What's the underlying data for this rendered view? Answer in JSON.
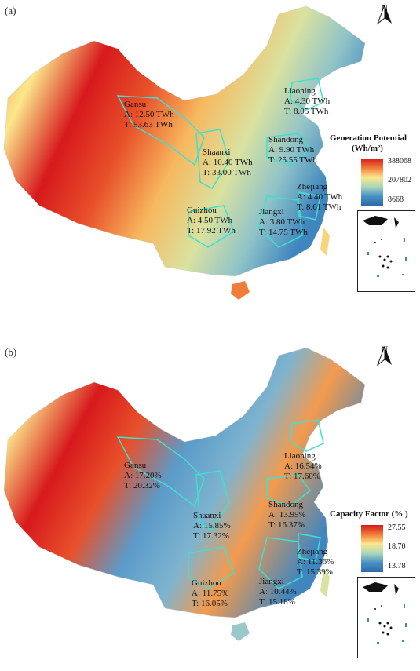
{
  "panel_a": {
    "tag": "(a)",
    "north": "N",
    "legend": {
      "title_line1": "Generation Potential",
      "title_line2": "(Wh/m²)",
      "max": "388068",
      "mid": "207802",
      "min": "8668"
    },
    "provinces": [
      {
        "name": "Gansu",
        "a": "A:  12.50 TWh",
        "t": "T:  53.63 TWh"
      },
      {
        "name": "Liaoning",
        "a": "A:  4.30 TWh",
        "t": "T:   8.05 TWh"
      },
      {
        "name": "Shaanxi",
        "a": "A:  10.40 TWh",
        "t": "T:  33.00 TWh"
      },
      {
        "name": "Shandong",
        "a": "A:  9.90 TWh",
        "t": "T:  25.55 TWh"
      },
      {
        "name": "Zhejiang",
        "a": "A:  4.40 TWh",
        "t": "T:   8.61 TWh"
      },
      {
        "name": "Guizhou",
        "a": "A:  4.50 TWh",
        "t": "T:  17.92 TWh"
      },
      {
        "name": "Jiangxi",
        "a": "A:  3.80 TWh",
        "t": "T:  14.75 TWh"
      }
    ],
    "colors": {
      "high": "#d7191c",
      "mid": "#fbe88c",
      "low": "#2c6aa8",
      "boundary": "#40e0d0"
    }
  },
  "panel_b": {
    "tag": "(b)",
    "north": "N",
    "legend": {
      "title_line1": "Capacity Factor (% )",
      "max": "27.55",
      "mid": "18.70",
      "min": "13.78"
    },
    "provinces": [
      {
        "name": "Gansu",
        "a": "A:  17.20%",
        "t": "T:  20.32%"
      },
      {
        "name": "Liaoning",
        "a": "A:  16.54%",
        "t": "T:  17.60%"
      },
      {
        "name": "Shaanxi",
        "a": "A:  15.85%",
        "t": "T:  17.32%"
      },
      {
        "name": "Shandong",
        "a": "A:  13.95%",
        "t": "T:  16.37%"
      },
      {
        "name": "Zhejiang",
        "a": "A:  11.36%",
        "t": "T:  15.39%"
      },
      {
        "name": "Guizhou",
        "a": "A:  11.75%",
        "t": "T:  16.05%"
      },
      {
        "name": "Jiangxi",
        "a": "A:  10.44%",
        "t": "T:  15.18%"
      }
    ],
    "colors": {
      "high": "#d7191c",
      "mid": "#fbe88c",
      "low": "#2c6aa8",
      "boundary": "#40e0d0"
    }
  }
}
